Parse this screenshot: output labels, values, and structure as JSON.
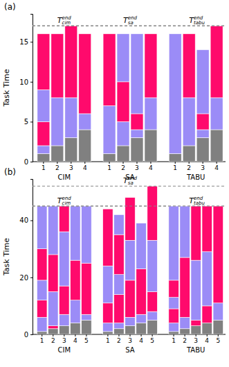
{
  "chart_data": [
    {
      "type": "bar",
      "stacked": true,
      "panel_label": "(a)",
      "ylabel": "Task Time",
      "ylim": [
        0,
        18.5
      ],
      "yticks": [
        0,
        5,
        10,
        15
      ],
      "line_style": "dashed",
      "groups": [
        {
          "name": "CIM",
          "categories": [
            "1",
            "2",
            "3",
            "4"
          ],
          "end_line": {
            "value": 17,
            "label": "T",
            "sup": "end",
            "sub": "cim"
          },
          "bars": [
            {
              "values": [
                1,
                1,
                3,
                4,
                7
              ],
              "colors": [
                "#808080",
                "#9b8cf7",
                "#ff0a6c",
                "#9b8cf7",
                "#ff0a6c"
              ]
            },
            {
              "values": [
                2,
                6,
                8
              ],
              "colors": [
                "#808080",
                "#9b8cf7",
                "#ff0a6c"
              ]
            },
            {
              "values": [
                3,
                5,
                9
              ],
              "colors": [
                "#808080",
                "#9b8cf7",
                "#ff0a6c"
              ]
            },
            {
              "values": [
                4,
                2,
                10
              ],
              "colors": [
                "#808080",
                "#9b8cf7",
                "#ff0a6c"
              ]
            }
          ]
        },
        {
          "name": "SA",
          "categories": [
            "1",
            "2",
            "3",
            "4"
          ],
          "end_line": {
            "value": 17,
            "label": "T",
            "sup": "end",
            "sub": "sa"
          },
          "bars": [
            {
              "values": [
                1,
                6,
                9
              ],
              "colors": [
                "#808080",
                "#9b8cf7",
                "#ff0a6c"
              ]
            },
            {
              "values": [
                2,
                3,
                5,
                6
              ],
              "colors": [
                "#808080",
                "#9b8cf7",
                "#ff0a6c",
                "#9b8cf7"
              ]
            },
            {
              "values": [
                3,
                1,
                2,
                10
              ],
              "colors": [
                "#808080",
                "#9b8cf7",
                "#ff0a6c",
                "#9b8cf7"
              ]
            },
            {
              "values": [
                4,
                4,
                8
              ],
              "colors": [
                "#808080",
                "#9b8cf7",
                "#ff0a6c"
              ]
            }
          ]
        },
        {
          "name": "TABU",
          "categories": [
            "1",
            "2",
            "3",
            "4"
          ],
          "end_line": {
            "value": 17,
            "label": "T",
            "sup": "end",
            "sub": "tabu"
          },
          "bars": [
            {
              "values": [
                1,
                15
              ],
              "colors": [
                "#808080",
                "#9b8cf7"
              ]
            },
            {
              "values": [
                2,
                6,
                8
              ],
              "colors": [
                "#808080",
                "#9b8cf7",
                "#ff0a6c"
              ]
            },
            {
              "values": [
                3,
                1,
                2,
                8
              ],
              "colors": [
                "#808080",
                "#9b8cf7",
                "#ff0a6c",
                "#9b8cf7"
              ]
            },
            {
              "values": [
                4,
                4,
                9
              ],
              "colors": [
                "#808080",
                "#9b8cf7",
                "#ff0a6c"
              ]
            }
          ]
        }
      ]
    },
    {
      "type": "bar",
      "stacked": true,
      "panel_label": "(b)",
      "ylabel": "Task Time",
      "ylim": [
        0,
        54.5
      ],
      "yticks": [
        0,
        20,
        40
      ],
      "line_style": "dashed",
      "groups": [
        {
          "name": "CIM",
          "categories": [
            "1",
            "2",
            "3",
            "4",
            "5"
          ],
          "end_line": {
            "value": 45,
            "label": "T",
            "sup": "end",
            "sub": "cim"
          },
          "bars": [
            {
              "values": [
                1,
                5,
                6,
                7,
                11,
                15
              ],
              "colors": [
                "#808080",
                "#9b8cf7",
                "#ff0a6c",
                "#9b8cf7",
                "#ff0a6c",
                "#9b8cf7"
              ]
            },
            {
              "values": [
                2,
                1,
                12,
                13,
                17
              ],
              "colors": [
                "#808080",
                "#ff0a6c",
                "#9b8cf7",
                "#ff0a6c",
                "#9b8cf7"
              ]
            },
            {
              "values": [
                3,
                4,
                10,
                19,
                9
              ],
              "colors": [
                "#808080",
                "#9b8cf7",
                "#ff0a6c",
                "#9b8cf7",
                "#ff0a6c"
              ]
            },
            {
              "values": [
                4,
                8,
                14,
                19
              ],
              "colors": [
                "#808080",
                "#9b8cf7",
                "#ff0a6c",
                "#9b8cf7"
              ]
            },
            {
              "values": [
                5,
                2,
                18,
                20
              ],
              "colors": [
                "#808080",
                "#9b8cf7",
                "#ff0a6c",
                "#9b8cf7"
              ]
            }
          ]
        },
        {
          "name": "SA",
          "categories": [
            "1",
            "2",
            "3",
            "4",
            "5"
          ],
          "end_line": {
            "value": 52,
            "label": "T",
            "sup": "end",
            "sub": "sa"
          },
          "bars": [
            {
              "values": [
                1,
                3,
                7,
                13,
                20
              ],
              "colors": [
                "#808080",
                "#9b8cf7",
                "#ff0a6c",
                "#9b8cf7",
                "#ff0a6c"
              ]
            },
            {
              "values": [
                2,
                2,
                10,
                7,
                14,
                7
              ],
              "colors": [
                "#808080",
                "#9b8cf7",
                "#ff0a6c",
                "#9b8cf7",
                "#ff0a6c",
                "#9b8cf7"
              ]
            },
            {
              "values": [
                3,
                3,
                13,
                14,
                15
              ],
              "colors": [
                "#808080",
                "#9b8cf7",
                "#ff0a6c",
                "#9b8cf7",
                "#ff0a6c"
              ]
            },
            {
              "values": [
                4,
                3,
                16,
                16
              ],
              "colors": [
                "#808080",
                "#9b8cf7",
                "#ff0a6c",
                "#9b8cf7"
              ]
            },
            {
              "values": [
                5,
                3,
                7,
                18,
                19
              ],
              "colors": [
                "#808080",
                "#9b8cf7",
                "#ff0a6c",
                "#9b8cf7",
                "#ff0a6c"
              ]
            }
          ]
        },
        {
          "name": "TABU",
          "categories": [
            "1",
            "2",
            "3",
            "4",
            "5"
          ],
          "end_line": {
            "value": 45,
            "label": "T",
            "sup": "end",
            "sub": "tabu"
          },
          "bars": [
            {
              "values": [
                1,
                3,
                5,
                4,
                6,
                26
              ],
              "colors": [
                "#808080",
                "#9b8cf7",
                "#ff0a6c",
                "#9b8cf7",
                "#ff0a6c",
                "#9b8cf7"
              ]
            },
            {
              "values": [
                2,
                4,
                21,
                18
              ],
              "colors": [
                "#808080",
                "#9b8cf7",
                "#ff0a6c",
                "#9b8cf7"
              ]
            },
            {
              "values": [
                3,
                2,
                21,
                19
              ],
              "colors": [
                "#808080",
                "#ff0a6c",
                "#9b8cf7",
                "#ff0a6c"
              ]
            },
            {
              "values": [
                4,
                6,
                19,
                16
              ],
              "colors": [
                "#808080",
                "#ff0a6c",
                "#9b8cf7",
                "#ff0a6c"
              ]
            },
            {
              "values": [
                5,
                6,
                34
              ],
              "colors": [
                "#808080",
                "#9b8cf7",
                "#ff0a6c"
              ]
            }
          ]
        }
      ]
    }
  ]
}
